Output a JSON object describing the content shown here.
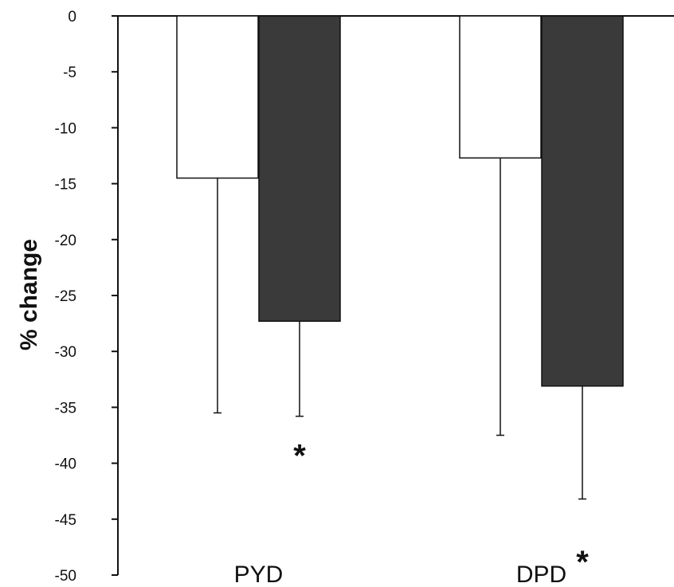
{
  "chart_data": {
    "type": "bar",
    "ylabel": "% change",
    "ylim": [
      -50,
      0
    ],
    "yticks": [
      0,
      -5,
      -10,
      -15,
      -20,
      -25,
      -30,
      -35,
      -40,
      -45,
      -50
    ],
    "categories": [
      "PYD",
      "DPD"
    ],
    "grid": false,
    "legend": "none",
    "series": [
      {
        "values": [
          -14.5,
          -12.7
        ],
        "errors": [
          21.0,
          24.8
        ],
        "color": "#ffffff"
      },
      {
        "values": [
          -27.3,
          -33.1
        ],
        "errors": [
          8.5,
          10.1
        ],
        "color": "#3a3a3a"
      }
    ],
    "annotations": [
      {
        "category": "PYD",
        "series": 1,
        "text": "*",
        "y": -39
      },
      {
        "category": "DPD",
        "series": 1,
        "text": "*",
        "y": -48.5
      }
    ]
  }
}
